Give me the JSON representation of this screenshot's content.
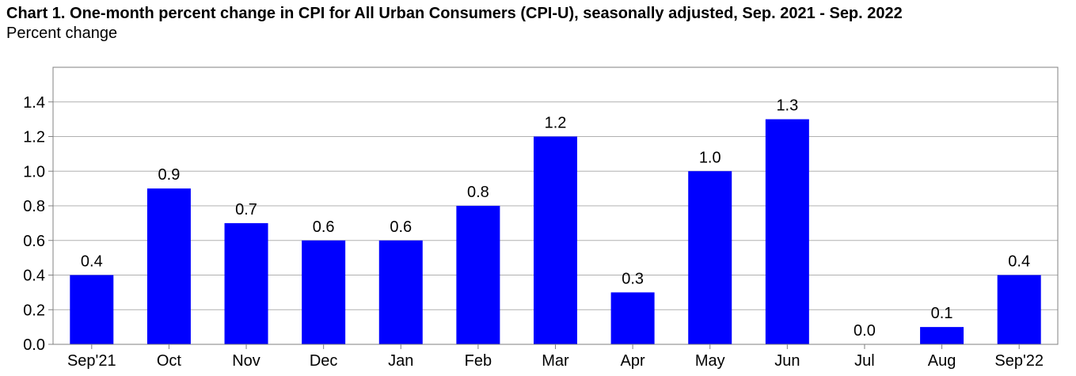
{
  "chart_data": {
    "type": "bar",
    "title": "Chart 1. One-month percent change in CPI for All Urban Consumers (CPI-U), seasonally adjusted, Sep. 2021 - Sep. 2022",
    "subtitle": "Percent change",
    "xlabel": "",
    "ylabel": "",
    "categories": [
      "Sep'21",
      "Oct",
      "Nov",
      "Dec",
      "Jan",
      "Feb",
      "Mar",
      "Apr",
      "May",
      "Jun",
      "Jul",
      "Aug",
      "Sep'22"
    ],
    "values": [
      0.4,
      0.9,
      0.7,
      0.6,
      0.6,
      0.8,
      1.2,
      0.3,
      1.0,
      1.3,
      0.0,
      0.1,
      0.4
    ],
    "value_labels": [
      "0.4",
      "0.9",
      "0.7",
      "0.6",
      "0.6",
      "0.8",
      "1.2",
      "0.3",
      "1.0",
      "1.3",
      "0.0",
      "0.1",
      "0.4"
    ],
    "y_ticks": [
      0.0,
      0.2,
      0.4,
      0.6,
      0.8,
      1.0,
      1.2,
      1.4
    ],
    "y_tick_labels": [
      "0.0",
      "0.2",
      "0.4",
      "0.6",
      "0.8",
      "1.0",
      "1.2",
      "1.4"
    ],
    "ylim": [
      0,
      1.6
    ],
    "grid": "horizontal",
    "legend": "none",
    "colors": {
      "bar": "#0000ff",
      "grid": "#b0b0b0",
      "axis": "#808080"
    }
  }
}
